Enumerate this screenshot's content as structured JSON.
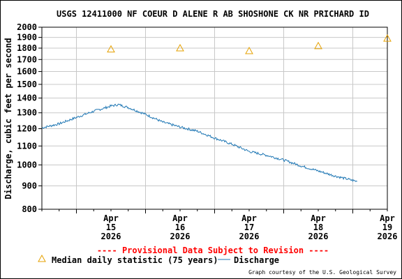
{
  "title": "USGS 12411000 NF COEUR D ALENE R AB SHOSHONE CK NR PRICHARD ID",
  "credit": "Graph courtesy of the U.S. Geological Survey",
  "provisional_note": "---- Provisional Data Subject to Revision ----",
  "colors": {
    "discharge": "#1f77b4",
    "median": "#e6a100",
    "provisional": "#ff0000",
    "grid": "#c8c8c8"
  },
  "chart_data": {
    "type": "line",
    "title": "USGS 12411000 NF COEUR D ALENE R AB SHOSHONE CK NR PRICHARD ID",
    "xlabel": "",
    "ylabel": "Discharge, cubic feet per second",
    "y_scale": "log",
    "ylim": [
      800,
      2000
    ],
    "y_ticks": [
      800,
      900,
      1000,
      1100,
      1200,
      1300,
      1400,
      1500,
      1600,
      1700,
      1800,
      1900,
      2000
    ],
    "xlim": [
      "2026-04-14T12:00",
      "2026-04-19T12:00"
    ],
    "x_ticks": [
      {
        "value": "2026-04-15",
        "month": "Apr",
        "day": "15",
        "year": "2026"
      },
      {
        "value": "2026-04-16",
        "month": "Apr",
        "day": "16",
        "year": "2026"
      },
      {
        "value": "2026-04-17",
        "month": "Apr",
        "day": "17",
        "year": "2026"
      },
      {
        "value": "2026-04-18",
        "month": "Apr",
        "day": "18",
        "year": "2026"
      },
      {
        "value": "2026-04-19",
        "month": "Apr",
        "day": "19",
        "year": "2026"
      }
    ],
    "grid": true,
    "legend_position": "bottom",
    "series": [
      {
        "name": "Median daily statistic (75 years)",
        "marker": "triangle",
        "points": [
          {
            "x": "2026-04-15T00:00",
            "y": 1790
          },
          {
            "x": "2026-04-16T00:00",
            "y": 1800
          },
          {
            "x": "2026-04-17T00:00",
            "y": 1775
          },
          {
            "x": "2026-04-18T00:00",
            "y": 1820
          },
          {
            "x": "2026-04-19T00:00",
            "y": 1890
          }
        ]
      },
      {
        "name": "Discharge",
        "marker": "line",
        "points": [
          {
            "x": "2026-04-14T12:00",
            "y": 1205
          },
          {
            "x": "2026-04-14T18:00",
            "y": 1230
          },
          {
            "x": "2026-04-15T00:00",
            "y": 1270
          },
          {
            "x": "2026-04-15T06:00",
            "y": 1310
          },
          {
            "x": "2026-04-15T12:00",
            "y": 1345
          },
          {
            "x": "2026-04-15T14:30",
            "y": 1355
          },
          {
            "x": "2026-04-15T18:00",
            "y": 1335
          },
          {
            "x": "2026-04-16T00:00",
            "y": 1290
          },
          {
            "x": "2026-04-16T06:00",
            "y": 1240
          },
          {
            "x": "2026-04-16T12:00",
            "y": 1210
          },
          {
            "x": "2026-04-16T18:00",
            "y": 1185
          },
          {
            "x": "2026-04-17T00:00",
            "y": 1145
          },
          {
            "x": "2026-04-17T06:00",
            "y": 1110
          },
          {
            "x": "2026-04-17T12:00",
            "y": 1070
          },
          {
            "x": "2026-04-17T18:00",
            "y": 1050
          },
          {
            "x": "2026-04-18T00:00",
            "y": 1025
          },
          {
            "x": "2026-04-18T06:00",
            "y": 995
          },
          {
            "x": "2026-04-18T12:00",
            "y": 970
          },
          {
            "x": "2026-04-18T18:00",
            "y": 945
          },
          {
            "x": "2026-04-19T00:00",
            "y": 925
          },
          {
            "x": "2026-04-19T01:30",
            "y": 920
          }
        ]
      }
    ]
  }
}
